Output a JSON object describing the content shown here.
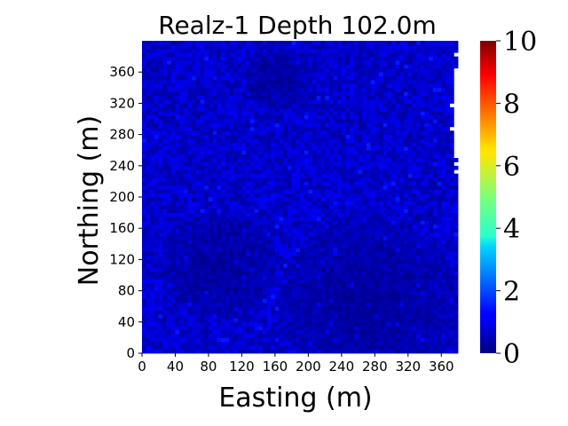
{
  "chart_data": {
    "type": "heatmap",
    "title": "Realz-1 Depth 102.0m",
    "xlabel": "Easting (m)",
    "ylabel": "Northing (m)",
    "xlim": [
      0,
      380
    ],
    "ylim": [
      0,
      400
    ],
    "x_ticks": [
      "0",
      "40",
      "80",
      "120",
      "160",
      "200",
      "240",
      "280",
      "320",
      "360"
    ],
    "y_ticks": [
      "0",
      "40",
      "80",
      "120",
      "160",
      "200",
      "240",
      "280",
      "320",
      "360"
    ],
    "colorbar": {
      "colormap": "jet",
      "range": [
        0,
        10
      ],
      "ticks": [
        "0",
        "2",
        "4",
        "6",
        "8",
        "10"
      ]
    },
    "value_range_shown": [
      0,
      1.5
    ],
    "right_edge_extent_m": [
      [
        0,
        380
      ],
      [
        40,
        385
      ],
      [
        80,
        385
      ],
      [
        120,
        388
      ],
      [
        160,
        392
      ],
      [
        200,
        385
      ],
      [
        240,
        378
      ],
      [
        280,
        374
      ],
      [
        320,
        372
      ],
      [
        360,
        378
      ],
      [
        400,
        380
      ]
    ],
    "low_value_regions": [
      {
        "center": [
          90,
          110
        ],
        "radius": 70
      },
      {
        "center": [
          270,
          60
        ],
        "radius": 110
      },
      {
        "center": [
          160,
          350
        ],
        "radius": 40
      }
    ]
  }
}
